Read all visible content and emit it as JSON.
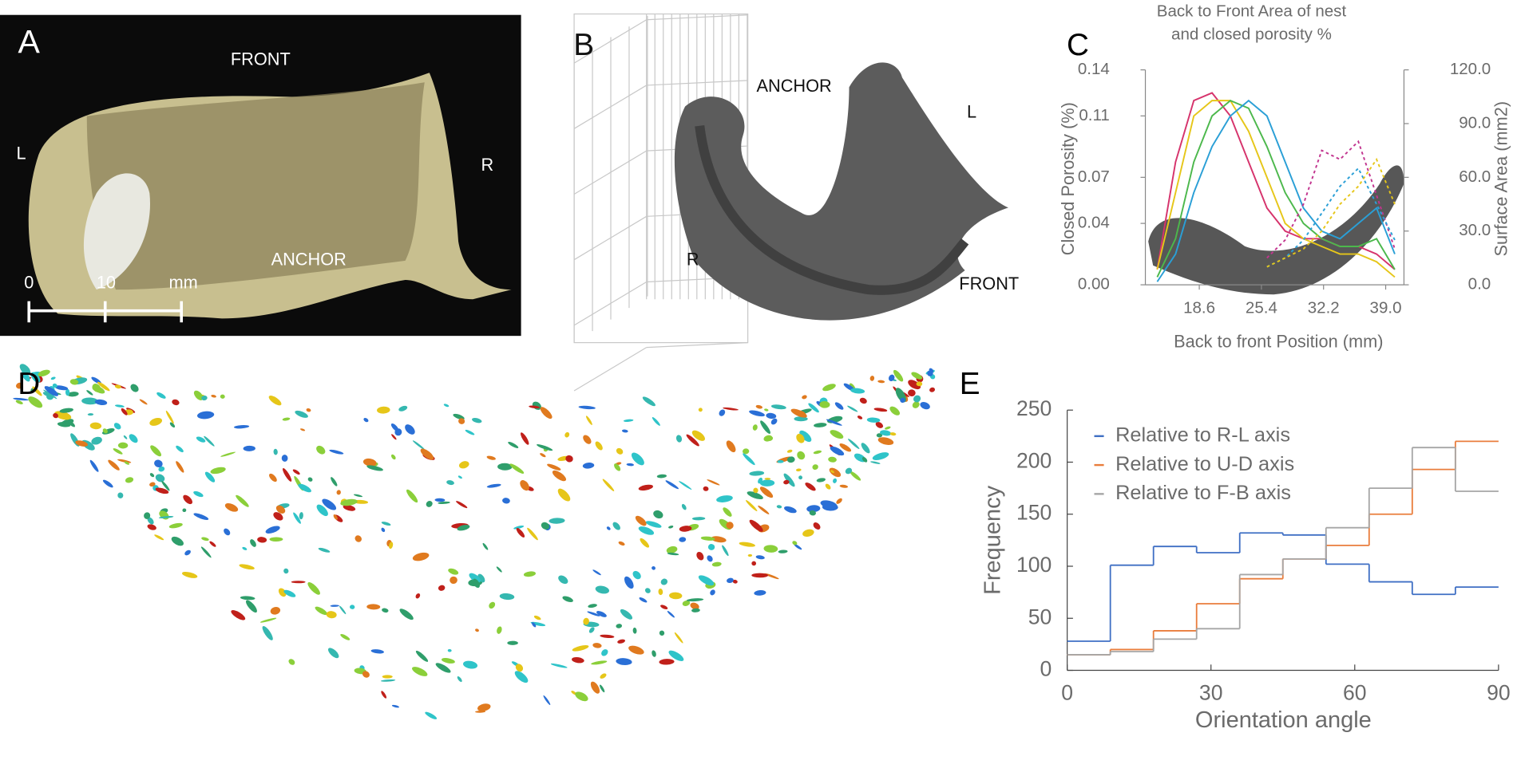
{
  "panels": {
    "A": {
      "letter": "A",
      "labels": [
        "FRONT",
        "L",
        "R",
        "ANCHOR"
      ],
      "scale_bar": [
        "0",
        "10",
        "mm"
      ]
    },
    "B": {
      "letter": "B",
      "labels": [
        "ANCHOR",
        "L",
        "R",
        "FRONT"
      ]
    },
    "C": {
      "letter": "C"
    },
    "D": {
      "letter": "D"
    },
    "E": {
      "letter": "E"
    }
  },
  "chart_data": [
    {
      "type": "line",
      "title": [
        "Back to Front Area of nest",
        "and closed porosity %"
      ],
      "x_label": "Back to front Position (mm)",
      "y_label": "Closed Porosity (%)",
      "y2_label": "Surface Area (mm2)",
      "x": [
        14,
        16,
        18,
        20,
        22,
        24,
        26,
        28,
        30,
        32,
        34,
        36,
        38,
        40
      ],
      "xlim": [
        12.7,
        41
      ],
      "xticks": [
        18.6,
        25.4,
        32.2,
        {
          "value": 39,
          "label": "39.0"
        }
      ],
      "ylim": [
        0,
        0.14
      ],
      "yticks": [
        {
          "value": 0,
          "label": "0.00"
        },
        0.04,
        0.07,
        0.11,
        0.14
      ],
      "y2lim": [
        0,
        120
      ],
      "y2ticks": [
        {
          "value": 0,
          "label": "0.0"
        },
        {
          "value": 30,
          "label": "30.0"
        },
        {
          "value": 60,
          "label": "60.0"
        },
        {
          "value": 90,
          "label": "90.0"
        },
        {
          "value": 120,
          "label": "120.0"
        }
      ],
      "series": [
        {
          "color": "#d6336c",
          "values": [
            0.01,
            0.08,
            0.12,
            0.125,
            0.11,
            0.08,
            0.05,
            0.035,
            0.03,
            0.03,
            0.025,
            0.025,
            0.02,
            0.01
          ]
        },
        {
          "color": "#e6c619",
          "values": [
            0.01,
            0.06,
            0.11,
            0.12,
            0.12,
            0.1,
            0.07,
            0.04,
            0.03,
            0.025,
            0.02,
            0.02,
            0.015,
            0.005
          ]
        },
        {
          "color": "#4cb84c",
          "values": [
            0.005,
            0.03,
            0.08,
            0.11,
            0.12,
            0.115,
            0.09,
            0.06,
            0.04,
            0.03,
            0.025,
            0.025,
            0.03,
            0.01
          ]
        },
        {
          "color": "#2a9fd6",
          "values": [
            0.002,
            0.02,
            0.06,
            0.09,
            0.11,
            0.12,
            0.11,
            0.08,
            0.05,
            0.035,
            0.03,
            0.04,
            0.05,
            0.02
          ]
        },
        {
          "color": "#c2358f",
          "axis": "y2",
          "dashed": true,
          "values": [
            null,
            null,
            null,
            null,
            null,
            null,
            15,
            25,
            45,
            75,
            70,
            80,
            50,
            20
          ]
        },
        {
          "color": "#2a9fd6",
          "axis": "y2",
          "dashed": true,
          "values": [
            null,
            null,
            null,
            null,
            null,
            null,
            10,
            15,
            25,
            40,
            55,
            65,
            45,
            25
          ]
        },
        {
          "color": "#e6c619",
          "axis": "y2",
          "dashed": true,
          "values": [
            null,
            null,
            null,
            null,
            null,
            null,
            10,
            15,
            20,
            30,
            45,
            55,
            70,
            45
          ]
        }
      ]
    },
    {
      "type": "histogram",
      "x_label": "Orientation angle",
      "y_label": "Frequency",
      "bins": [
        0,
        9,
        18,
        27,
        36,
        45,
        54,
        63,
        72,
        81,
        90
      ],
      "xlim": [
        0,
        90
      ],
      "xticks": [
        0,
        30,
        60,
        90
      ],
      "ylim": [
        0,
        250
      ],
      "yticks": [
        0,
        50,
        100,
        150,
        200,
        250
      ],
      "legend": "upper left",
      "series": [
        {
          "name": "Relative to R-L axis",
          "color": "#3f6fc4",
          "values": [
            28,
            101,
            119,
            113,
            132,
            130,
            102,
            85,
            73,
            80
          ]
        },
        {
          "name": "Relative to U-D axis",
          "color": "#e97d3c",
          "values": [
            15,
            20,
            38,
            64,
            88,
            107,
            120,
            150,
            193,
            220
          ]
        },
        {
          "name": "Relative to F-B axis",
          "color": "#a6a6a6",
          "values": [
            15,
            18,
            30,
            40,
            92,
            107,
            137,
            175,
            214,
            172
          ]
        }
      ]
    }
  ]
}
